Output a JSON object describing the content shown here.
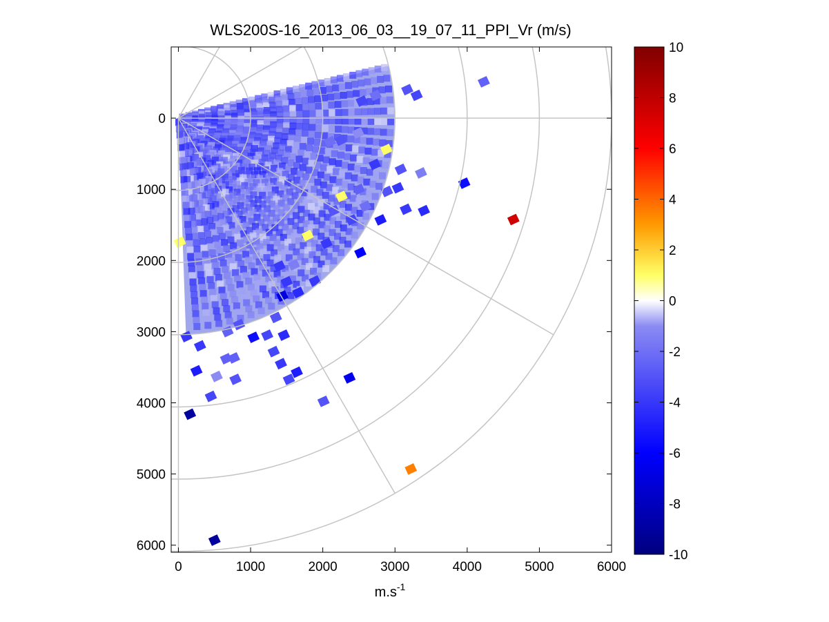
{
  "chart_data": {
    "type": "heatmap",
    "subtype": "polar-ppi-scan",
    "title": "WLS200S-16_2013_06_03__19_07_11_PPI_Vr (m/s)",
    "xlabel_base": "m.s",
    "xlabel_sup": "-1",
    "ylabel": "",
    "xlim": [
      -100,
      6000
    ],
    "ylim": [
      6100,
      -1000
    ],
    "xticks": [
      0,
      1000,
      2000,
      3000,
      4000,
      5000,
      6000
    ],
    "yticks": [
      0,
      1000,
      2000,
      3000,
      4000,
      5000,
      6000
    ],
    "polar_grid": {
      "range_rings": [
        1000,
        2000,
        3000,
        4000,
        5000,
        6000
      ],
      "spoke_angles_deg": [
        -60,
        -30,
        0,
        30,
        60,
        90
      ]
    },
    "scan_sector_deg": [
      -14,
      88
    ],
    "scan_max_range": 3000,
    "colorbar": {
      "min": -10,
      "max": 10,
      "ticks": [
        -10,
        -8,
        -6,
        -4,
        -2,
        0,
        2,
        4,
        6,
        8,
        10
      ],
      "colormap": "blue-white-yellow-red"
    },
    "points": [
      {
        "x": 4230,
        "y": -510,
        "v": -2.5
      },
      {
        "x": 3960,
        "y": 915,
        "v": -5.5
      },
      {
        "x": 4640,
        "y": 1425,
        "v": 7.5
      },
      {
        "x": 2520,
        "y": 1890,
        "v": -6.0
      },
      {
        "x": 2370,
        "y": 3650,
        "v": -6.5
      },
      {
        "x": 3220,
        "y": 4930,
        "v": 3.5
      },
      {
        "x": 160,
        "y": 4160,
        "v": -9.0
      },
      {
        "x": 500,
        "y": 5930,
        "v": -9.0
      },
      {
        "x": 2010,
        "y": 3980,
        "v": -3.0
      },
      {
        "x": 2800,
        "y": 1430,
        "v": -5.0
      },
      {
        "x": 3150,
        "y": 1280,
        "v": -4.0
      },
      {
        "x": 3400,
        "y": 1300,
        "v": -4.5
      },
      {
        "x": 3360,
        "y": 770,
        "v": -1.5
      },
      {
        "x": 3040,
        "y": 980,
        "v": -4.0
      },
      {
        "x": 3080,
        "y": 720,
        "v": -3.0
      },
      {
        "x": 2880,
        "y": 440,
        "v": 1.0
      },
      {
        "x": 3300,
        "y": -320,
        "v": -3.5
      },
      {
        "x": 3170,
        "y": -400,
        "v": -3.0
      },
      {
        "x": 2730,
        "y": -320,
        "v": -2.0
      },
      {
        "x": 2540,
        "y": -240,
        "v": -3.5
      },
      {
        "x": 2250,
        "y": 310,
        "v": -3.0
      },
      {
        "x": 2100,
        "y": 330,
        "v": -2.0
      },
      {
        "x": 2490,
        "y": 210,
        "v": -1.0
      },
      {
        "x": 2720,
        "y": 650,
        "v": -4.0
      },
      {
        "x": 2500,
        "y": 1000,
        "v": -2.5
      },
      {
        "x": 2260,
        "y": 1100,
        "v": 1.0
      },
      {
        "x": 2150,
        "y": 1300,
        "v": -3.0
      },
      {
        "x": 2400,
        "y": 1430,
        "v": -3.5
      },
      {
        "x": 2050,
        "y": 1760,
        "v": -4.0
      },
      {
        "x": 1790,
        "y": 1650,
        "v": 1.0
      },
      {
        "x": 1890,
        "y": 2290,
        "v": -4.0
      },
      {
        "x": 1600,
        "y": 2060,
        "v": -1.5
      },
      {
        "x": 1400,
        "y": 2080,
        "v": -4.0
      },
      {
        "x": 1500,
        "y": 2300,
        "v": -4.0
      },
      {
        "x": 1660,
        "y": 2450,
        "v": -4.5
      },
      {
        "x": 1440,
        "y": 2500,
        "v": -7.0
      },
      {
        "x": 1350,
        "y": 2800,
        "v": -3.0
      },
      {
        "x": 1230,
        "y": 3050,
        "v": -3.5
      },
      {
        "x": 1040,
        "y": 3080,
        "v": -5.5
      },
      {
        "x": 840,
        "y": 2900,
        "v": -3.0
      },
      {
        "x": 1460,
        "y": 3050,
        "v": -4.5
      },
      {
        "x": 1320,
        "y": 3280,
        "v": -3.5
      },
      {
        "x": 1420,
        "y": 3450,
        "v": -4.0
      },
      {
        "x": 1530,
        "y": 3670,
        "v": -3.5
      },
      {
        "x": 1640,
        "y": 3570,
        "v": -5.0
      },
      {
        "x": 660,
        "y": 3380,
        "v": -2.5
      },
      {
        "x": 770,
        "y": 3370,
        "v": -2.5
      },
      {
        "x": 680,
        "y": 3000,
        "v": -2.5
      },
      {
        "x": 300,
        "y": 3200,
        "v": -4.0
      },
      {
        "x": 110,
        "y": 3070,
        "v": -4.0
      },
      {
        "x": 250,
        "y": 3550,
        "v": -5.0
      },
      {
        "x": 530,
        "y": 3630,
        "v": -1.0
      },
      {
        "x": 790,
        "y": 3670,
        "v": -3.0
      },
      {
        "x": 450,
        "y": 3910,
        "v": -3.5
      },
      {
        "x": 20,
        "y": 1740,
        "v": 1.0
      },
      {
        "x": 2890,
        "y": 1030,
        "v": -3.0
      },
      {
        "x": 2590,
        "y": 1240,
        "v": -2.0
      }
    ]
  }
}
